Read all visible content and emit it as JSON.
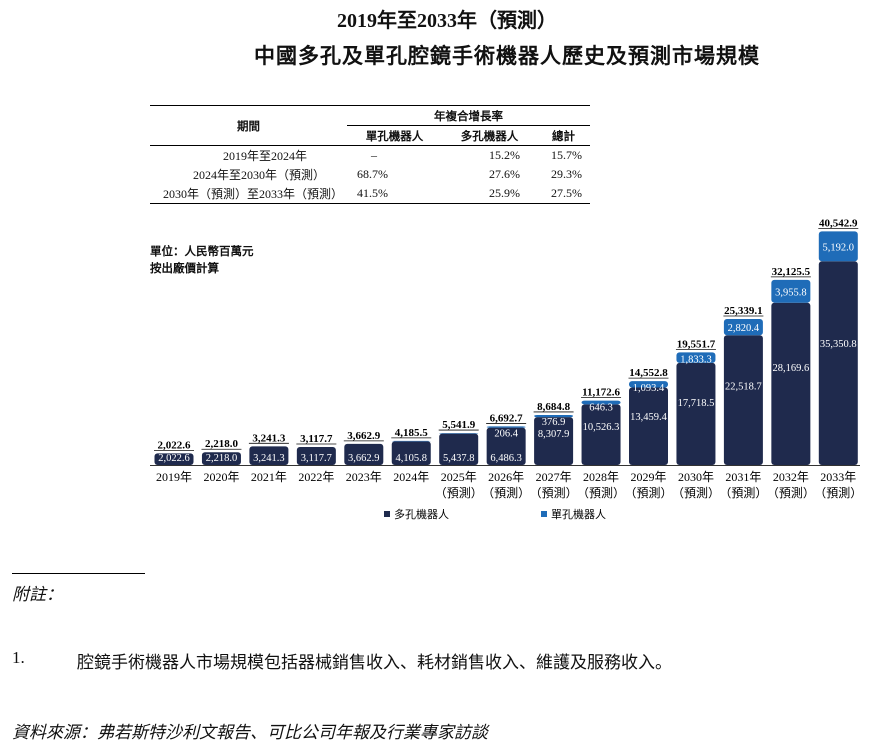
{
  "title_line1": "2019年至2033年（預測）",
  "title_line2": "中國多孔及單孔腔鏡手術機器人歷史及預測市場規模",
  "cagr_table": {
    "period_header": "期間",
    "group_header": "年複合增長率",
    "col_headers": [
      "單孔機器人",
      "多孔機器人",
      "總計"
    ],
    "rows": [
      {
        "period": "2019年至2024年",
        "single": "–",
        "multi": "15.2%",
        "total": "15.7%"
      },
      {
        "period": "2024年至2030年（預測）",
        "single": "68.7%",
        "multi": "27.6%",
        "total": "29.3%"
      },
      {
        "period": "2030年（預測）至2033年（預測）",
        "single": "41.5%",
        "multi": "25.9%",
        "total": "27.5%"
      }
    ]
  },
  "unit_note": {
    "line1": "單位：人民幣百萬元",
    "line2": "按出廠價計算"
  },
  "chart_data": {
    "type": "bar",
    "stacked": true,
    "categories": [
      "2019年",
      "2020年",
      "2021年",
      "2022年",
      "2023年",
      "2024年",
      "2025年",
      "2026年",
      "2027年",
      "2028年",
      "2029年",
      "2030年",
      "2031年",
      "2032年",
      "2033年"
    ],
    "category_sublabels": [
      "",
      "",
      "",
      "",
      "",
      "",
      "（預測）",
      "（預測）",
      "（預測）",
      "（預測）",
      "（預測）",
      "（預測）",
      "（預測）",
      "（預測）",
      "（預測）"
    ],
    "series": [
      {
        "name": "多孔機器人",
        "color": "#1f2a4d",
        "values": [
          2022.6,
          2218.0,
          3241.3,
          3117.7,
          3662.9,
          4105.8,
          5437.8,
          6486.3,
          8307.9,
          10526.3,
          13459.4,
          17718.5,
          22518.7,
          28169.6,
          35350.8
        ],
        "labels": [
          "2,022.6",
          "2,218.0",
          "3,241.3",
          "3,117.7",
          "3,662.9",
          "4,105.8",
          "5,437.8",
          "6,486.3",
          "8,307.9",
          "10,526.3",
          "13,459.4",
          "17,718.5",
          "22,518.7",
          "28,169.6",
          "35,350.8"
        ]
      },
      {
        "name": "單孔機器人",
        "color": "#1f6cb8",
        "values": [
          0,
          0,
          0,
          0,
          0,
          79.7,
          104.1,
          206.4,
          376.9,
          646.3,
          1093.4,
          1833.3,
          2820.4,
          3955.8,
          5192.0
        ],
        "labels": [
          "",
          "",
          "",
          "",
          "",
          "",
          "",
          "206.4",
          "376.9",
          "646.3",
          "1,093.4",
          "1,833.3",
          "2,820.4",
          "3,955.8",
          "5,192.0"
        ]
      }
    ],
    "totals": [
      2022.6,
      2218.0,
      3241.3,
      3117.7,
      3662.9,
      4185.5,
      5541.9,
      6692.7,
      8684.8,
      11172.6,
      14552.8,
      19551.7,
      25339.1,
      32125.5,
      40542.9
    ],
    "total_labels": [
      "2,022.6",
      "2,218.0",
      "3,241.3",
      "3,117.7",
      "3,662.9",
      "4,185.5",
      "5,541.9",
      "6,692.7",
      "8,684.8",
      "11,172.6",
      "14,552.8",
      "19,551.7",
      "25,339.1",
      "32,125.5",
      "40,542.9"
    ],
    "ylim": [
      0,
      42000
    ],
    "legend": [
      "多孔機器人",
      "單孔機器人"
    ],
    "legend_position": "bottom",
    "title": "",
    "xlabel": "",
    "ylabel": ""
  },
  "footnotes": {
    "heading": "附註：",
    "items": [
      {
        "num": "1.",
        "text": "腔鏡手術機器人市場規模包括器械銷售收入、耗材銷售收入、維護及服務收入。"
      }
    ],
    "source": "資料來源：弗若斯特沙利文報告、可比公司年報及行業專家訪談"
  }
}
